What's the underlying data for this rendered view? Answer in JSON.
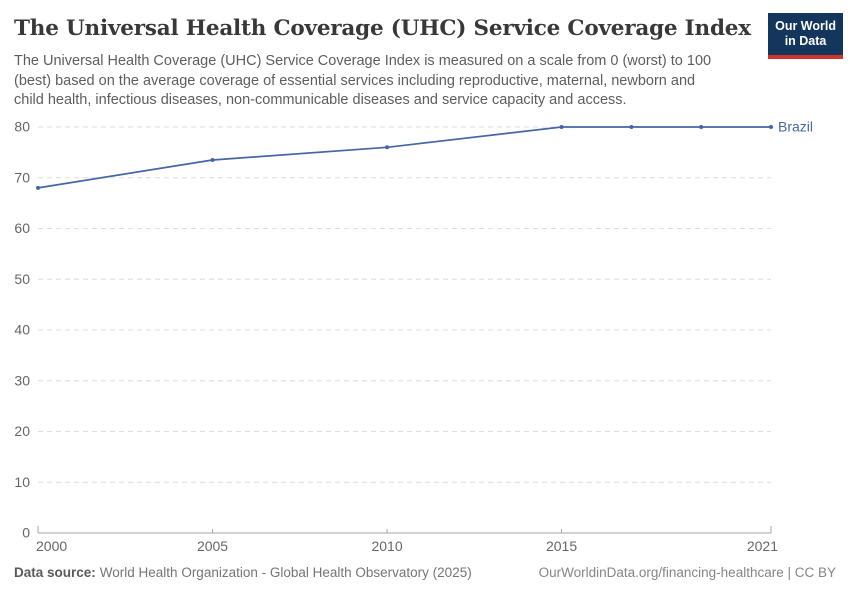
{
  "header": {
    "title": "The Universal Health Coverage (UHC) Service Coverage Index",
    "subtitle": "The Universal Health Coverage (UHC) Service Coverage Index is measured on a scale from 0 (worst) to 100\n(best) based on the average coverage of essential services including reproductive, maternal, newborn and\nchild health, infectious diseases, non-communicable diseases and service capacity and access.",
    "logo": {
      "line1": "Our World",
      "line2": "in Data",
      "bg_color": "#14355c",
      "bar_color": "#d0342c"
    }
  },
  "chart_data": {
    "type": "line",
    "title": "The Universal Health Coverage (UHC) Service Coverage Index",
    "xlabel": "",
    "ylabel": "",
    "xlim": [
      2000,
      2021
    ],
    "ylim": [
      0,
      80
    ],
    "x_ticks": [
      2000,
      2005,
      2010,
      2015,
      2021
    ],
    "y_ticks": [
      0,
      10,
      20,
      30,
      40,
      50,
      60,
      70,
      80
    ],
    "grid": "horizontal-dashed",
    "legend_position": "end-of-line",
    "series": [
      {
        "name": "Brazil",
        "color": "#4565a5",
        "x": [
          2000,
          2005,
          2010,
          2015,
          2017,
          2019,
          2021
        ],
        "values": [
          68,
          73.5,
          76,
          80,
          80,
          80,
          80
        ]
      }
    ]
  },
  "footer": {
    "source_label": "Data source:",
    "source_text": "World Health Organization - Global Health Observatory (2025)",
    "credit": "OurWorldinData.org/financing-healthcare | CC BY"
  },
  "colors": {
    "line": "#4565a5",
    "grid": "#dcdcdc",
    "axis": "#a5a5a5",
    "tick_label": "#666666",
    "title": "#383838",
    "subtitle": "#5d5d5d"
  }
}
